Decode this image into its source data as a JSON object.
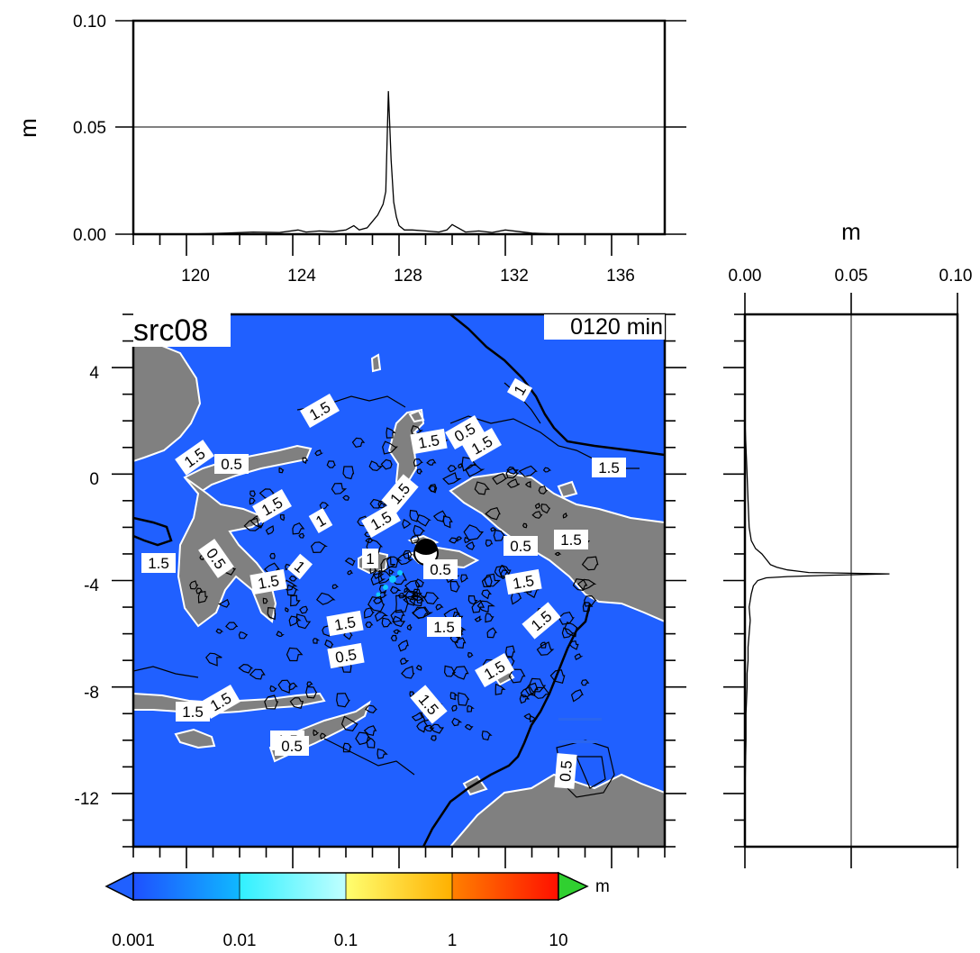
{
  "map": {
    "title": "src08",
    "time_label": "0120 min",
    "longitude_ticks": [
      "120",
      "124",
      "128",
      "132",
      "136"
    ],
    "latitude_ticks": [
      "4",
      "0",
      "-4",
      "-8",
      "-12"
    ],
    "lon_range": [
      118,
      138
    ],
    "lat_range": [
      -14,
      6
    ],
    "sea_color": "#2060ff",
    "land_color": "#808080",
    "coastline_color": "#ffffff",
    "contour_color": "#000000",
    "epicenter_icon": "beachball-icon",
    "contour_labels": [
      "1.5",
      "1.5",
      "0.5",
      "1.5",
      "1",
      "1.5",
      "1.5",
      "0.5",
      "1.5",
      "1",
      "1.5",
      "1",
      "1.5",
      "0.5",
      "1.5",
      "0.5",
      "1.5",
      "1.5",
      "1.5",
      "1.5",
      "1.5",
      "1.5",
      "1.5",
      "1.5",
      "0.5",
      "0.5",
      "0.5",
      "1",
      "1.5",
      "1.5",
      "1.5",
      "0.5"
    ]
  },
  "top_profile": {
    "ylabel": "m",
    "y_ticks": [
      "0.00",
      "0.05",
      "0.10"
    ],
    "x_ticks": [
      "120",
      "124",
      "128",
      "132",
      "136"
    ]
  },
  "side_profile": {
    "xlabel": "m",
    "x_ticks": [
      "0.00",
      "0.05",
      "0.10"
    ]
  },
  "colorbar": {
    "unit": "m",
    "ticks": [
      "0.001",
      "0.01",
      "0.1",
      "1",
      "10"
    ],
    "colors": [
      "#2060ff",
      "#10c8ff",
      "#60ffff",
      "#ffff50",
      "#ffa000",
      "#ff2000",
      "#30d030"
    ]
  },
  "chart_data": [
    {
      "type": "line",
      "title": "",
      "xlabel": "",
      "ylabel": "m",
      "xlim": [
        118,
        138
      ],
      "ylim": [
        0,
        0.1
      ],
      "x": [
        118,
        120,
        121.5,
        122.5,
        123.5,
        124.2,
        124.5,
        125,
        125.5,
        126,
        126.3,
        126.5,
        126.8,
        127,
        127.2,
        127.4,
        127.5,
        127.6,
        127.7,
        127.8,
        127.9,
        128,
        128.2,
        128.5,
        129,
        129.5,
        129.8,
        130,
        130.5,
        131,
        131.5,
        132,
        133,
        134,
        138
      ],
      "series": [
        {
          "values": [
            0.0,
            0.0,
            0.0005,
            0.001,
            0.0008,
            0.002,
            0.001,
            0.0015,
            0.0012,
            0.002,
            0.004,
            0.002,
            0.003,
            0.006,
            0.009,
            0.014,
            0.02,
            0.067,
            0.035,
            0.015,
            0.008,
            0.004,
            0.002,
            0.002,
            0.0015,
            0.001,
            0.002,
            0.0045,
            0.001,
            0.0015,
            0.0008,
            0.002,
            0.0005,
            0.0,
            0.0
          ]
        }
      ]
    },
    {
      "type": "line",
      "title": "",
      "xlabel": "m",
      "ylabel": "",
      "xlim": [
        0,
        0.1
      ],
      "ylim": [
        -14,
        6
      ],
      "y": [
        6,
        4,
        2,
        1,
        0,
        -1,
        -2,
        -2.5,
        -2.8,
        -3,
        -3.2,
        -3.4,
        -3.5,
        -3.6,
        -3.7,
        -3.75,
        -3.8,
        -3.85,
        -3.9,
        -4,
        -4.2,
        -4.5,
        -5,
        -5.5,
        -6,
        -6.5,
        -7,
        -7.5,
        -8,
        -9,
        -10,
        -12,
        -14
      ],
      "series": [
        {
          "values": [
            0.0,
            0.0,
            0.0,
            0.0005,
            0.001,
            0.0015,
            0.002,
            0.003,
            0.005,
            0.008,
            0.01,
            0.012,
            0.015,
            0.02,
            0.03,
            0.068,
            0.04,
            0.02,
            0.01,
            0.006,
            0.004,
            0.003,
            0.002,
            0.0025,
            0.002,
            0.0015,
            0.0015,
            0.001,
            0.001,
            0.0005,
            0.0005,
            0.0,
            0.0
          ]
        }
      ]
    }
  ]
}
